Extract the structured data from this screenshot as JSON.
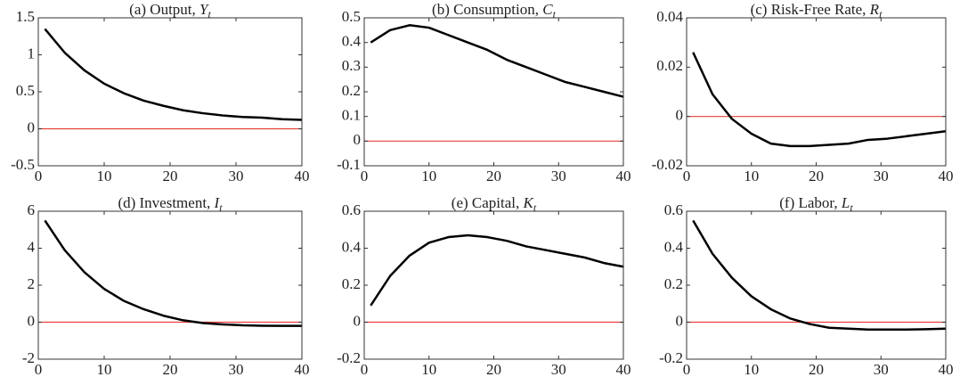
{
  "chart_data": [
    {
      "type": "line",
      "title": "(a) Output, ",
      "title_var": "Y",
      "title_sub": "t",
      "x": [
        1,
        4,
        7,
        10,
        13,
        16,
        19,
        22,
        25,
        28,
        31,
        34,
        37,
        40
      ],
      "series": [
        {
          "color": "#000000",
          "values": [
            1.35,
            1.03,
            0.79,
            0.61,
            0.48,
            0.38,
            0.31,
            0.25,
            0.21,
            0.18,
            0.16,
            0.15,
            0.13,
            0.12
          ]
        }
      ],
      "xlim": [
        0,
        40
      ],
      "xticks": [
        0,
        10,
        20,
        30,
        40
      ],
      "ylim": [
        -0.5,
        1.5
      ],
      "yticks": [
        -0.5,
        0,
        0.5,
        1,
        1.5
      ],
      "hline": 0,
      "hline_color": "#e8413c"
    },
    {
      "type": "line",
      "title": "(b) Consumption, ",
      "title_var": "C",
      "title_sub": "t",
      "x": [
        1,
        4,
        7,
        10,
        13,
        16,
        19,
        22,
        25,
        28,
        31,
        34,
        37,
        40
      ],
      "series": [
        {
          "color": "#000000",
          "values": [
            0.4,
            0.45,
            0.47,
            0.46,
            0.43,
            0.4,
            0.37,
            0.33,
            0.3,
            0.27,
            0.24,
            0.22,
            0.2,
            0.18
          ]
        }
      ],
      "xlim": [
        0,
        40
      ],
      "xticks": [
        0,
        10,
        20,
        30,
        40
      ],
      "ylim": [
        -0.1,
        0.5
      ],
      "yticks": [
        -0.1,
        0,
        0.1,
        0.2,
        0.3,
        0.4,
        0.5
      ],
      "hline": 0,
      "hline_color": "#e8413c"
    },
    {
      "type": "line",
      "title": "(c) Risk-Free Rate, ",
      "title_var": "R",
      "title_sub": "t",
      "x": [
        1,
        4,
        7,
        10,
        13,
        16,
        19,
        22,
        25,
        28,
        31,
        34,
        37,
        40
      ],
      "series": [
        {
          "color": "#000000",
          "values": [
            0.026,
            0.009,
            -0.001,
            -0.007,
            -0.011,
            -0.012,
            -0.012,
            -0.0115,
            -0.011,
            -0.0095,
            -0.009,
            -0.008,
            -0.007,
            -0.006
          ]
        }
      ],
      "xlim": [
        0,
        40
      ],
      "xticks": [
        0,
        10,
        20,
        30,
        40
      ],
      "ylim": [
        -0.02,
        0.04
      ],
      "yticks": [
        -0.02,
        0,
        0.02,
        0.04
      ],
      "hline": 0,
      "hline_color": "#e8413c"
    },
    {
      "type": "line",
      "title": "(d) Investment, ",
      "title_var": "I",
      "title_sub": "t",
      "x": [
        1,
        4,
        7,
        10,
        13,
        16,
        19,
        22,
        25,
        28,
        31,
        34,
        37,
        40
      ],
      "series": [
        {
          "color": "#000000",
          "values": [
            5.5,
            3.9,
            2.7,
            1.8,
            1.15,
            0.7,
            0.35,
            0.1,
            -0.05,
            -0.12,
            -0.17,
            -0.19,
            -0.2,
            -0.2
          ]
        }
      ],
      "xlim": [
        0,
        40
      ],
      "xticks": [
        0,
        10,
        20,
        30,
        40
      ],
      "ylim": [
        -2,
        6
      ],
      "yticks": [
        -2,
        0,
        2,
        4,
        6
      ],
      "hline": 0,
      "hline_color": "#e8413c"
    },
    {
      "type": "line",
      "title": "(e) Capital, ",
      "title_var": "K",
      "title_sub": "t",
      "x": [
        1,
        4,
        7,
        10,
        13,
        16,
        19,
        22,
        25,
        28,
        31,
        34,
        37,
        40
      ],
      "series": [
        {
          "color": "#000000",
          "values": [
            0.09,
            0.25,
            0.36,
            0.43,
            0.46,
            0.47,
            0.46,
            0.44,
            0.41,
            0.39,
            0.37,
            0.35,
            0.32,
            0.3
          ]
        }
      ],
      "xlim": [
        0,
        40
      ],
      "xticks": [
        0,
        10,
        20,
        30,
        40
      ],
      "ylim": [
        -0.2,
        0.6
      ],
      "yticks": [
        -0.2,
        0,
        0.2,
        0.4,
        0.6
      ],
      "hline": 0,
      "hline_color": "#e8413c"
    },
    {
      "type": "line",
      "title": "(f) Labor, ",
      "title_var": "L",
      "title_sub": "t",
      "x": [
        1,
        4,
        7,
        10,
        13,
        16,
        19,
        22,
        25,
        28,
        31,
        34,
        37,
        40
      ],
      "series": [
        {
          "color": "#000000",
          "values": [
            0.55,
            0.37,
            0.24,
            0.14,
            0.07,
            0.02,
            -0.01,
            -0.03,
            -0.035,
            -0.04,
            -0.04,
            -0.04,
            -0.038,
            -0.035
          ]
        }
      ],
      "xlim": [
        0,
        40
      ],
      "xticks": [
        0,
        10,
        20,
        30,
        40
      ],
      "ylim": [
        -0.2,
        0.6
      ],
      "yticks": [
        -0.2,
        0,
        0.2,
        0.4,
        0.6
      ],
      "hline": 0,
      "hline_color": "#e8413c"
    }
  ]
}
